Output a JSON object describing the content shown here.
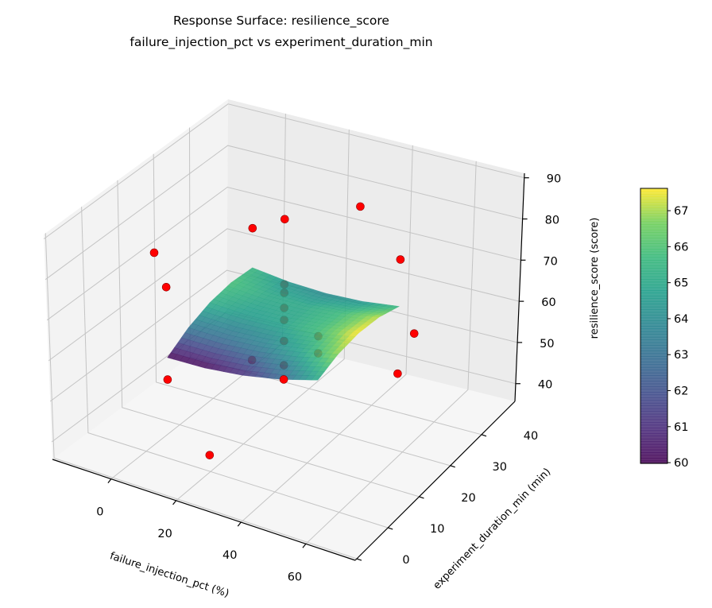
{
  "chart_data": {
    "type": "surface3d",
    "title": "Response Surface: resilience_score",
    "subtitle": "failure_injection_pct vs experiment_duration_min",
    "xlabel": "failure_injection_pct (%)",
    "ylabel": "experiment_duration_min (min)",
    "zlabel": "resilience_score (score)",
    "xlim": [
      -18.1,
      75.2
    ],
    "ylim": [
      -0.5,
      50.7
    ],
    "zlim": [
      35.7,
      91.1
    ],
    "xticks": [
      0,
      20,
      40,
      60
    ],
    "yticks": [
      0,
      10,
      20,
      30,
      40
    ],
    "zticks": [
      40,
      50,
      60,
      70,
      80,
      90
    ],
    "grid": true,
    "colormap": "viridis",
    "colorbar": {
      "range": [
        59.98,
        67.62
      ],
      "ticks": [
        60,
        61,
        62,
        63,
        64,
        65,
        66,
        67
      ],
      "placement": "right"
    },
    "surface": {
      "x": [
        7,
        18.5,
        30,
        41.5,
        53
      ],
      "y": [
        10,
        16.25,
        22.5,
        28.75,
        35
      ],
      "z": [
        [
          60.0,
          60.13,
          61.0,
          62.63,
          65.0
        ],
        [
          63.18,
          62.99,
          63.55,
          64.86,
          66.93
        ],
        [
          65.15,
          64.65,
          64.9,
          65.9,
          67.65
        ],
        [
          65.93,
          65.11,
          65.05,
          65.74,
          67.18
        ],
        [
          65.5,
          64.38,
          64.0,
          64.38,
          65.5
        ]
      ],
      "opacity": 0.85
    },
    "points_color": "#ff0000",
    "points": [
      {
        "x": 7,
        "y": 10,
        "z": 77.0,
        "behind_surface": false
      },
      {
        "x": 7,
        "y": 10,
        "z": 54.7,
        "behind_surface": false
      },
      {
        "x": 7,
        "y": 35,
        "z": 75.0,
        "behind_surface": false
      },
      {
        "x": 7,
        "y": 35,
        "z": 43.2,
        "behind_surface": true
      },
      {
        "x": 53,
        "y": 10,
        "z": 75.3,
        "behind_surface": true
      },
      {
        "x": 53,
        "y": 10,
        "z": 71.3,
        "behind_surface": true
      },
      {
        "x": 53,
        "y": 35,
        "z": 76.7,
        "behind_surface": false
      },
      {
        "x": 53,
        "y": 35,
        "z": 49.4,
        "behind_surface": false
      },
      {
        "x": -10,
        "y": 22.5,
        "z": 73.6,
        "behind_surface": false
      },
      {
        "x": 70,
        "y": 22.5,
        "z": 71.1,
        "behind_surface": false
      },
      {
        "x": 30,
        "y": 0,
        "z": 48.7,
        "behind_surface": false
      },
      {
        "x": 30,
        "y": 45,
        "z": 78.2,
        "behind_surface": false
      },
      {
        "x": 30,
        "y": 22.5,
        "z": 90.0,
        "behind_surface": false
      },
      {
        "x": 30,
        "y": 22.5,
        "z": 74.4,
        "behind_surface": true
      },
      {
        "x": 30,
        "y": 22.5,
        "z": 72.4,
        "behind_surface": true
      },
      {
        "x": 30,
        "y": 22.5,
        "z": 68.8,
        "behind_surface": true
      },
      {
        "x": 30,
        "y": 22.5,
        "z": 65.9,
        "behind_surface": true
      },
      {
        "x": 30,
        "y": 22.5,
        "z": 60.9,
        "behind_surface": true
      },
      {
        "x": 30,
        "y": 22.5,
        "z": 55.1,
        "behind_surface": true
      },
      {
        "x": 30,
        "y": 22.5,
        "z": 51.7,
        "behind_surface": false
      }
    ]
  }
}
